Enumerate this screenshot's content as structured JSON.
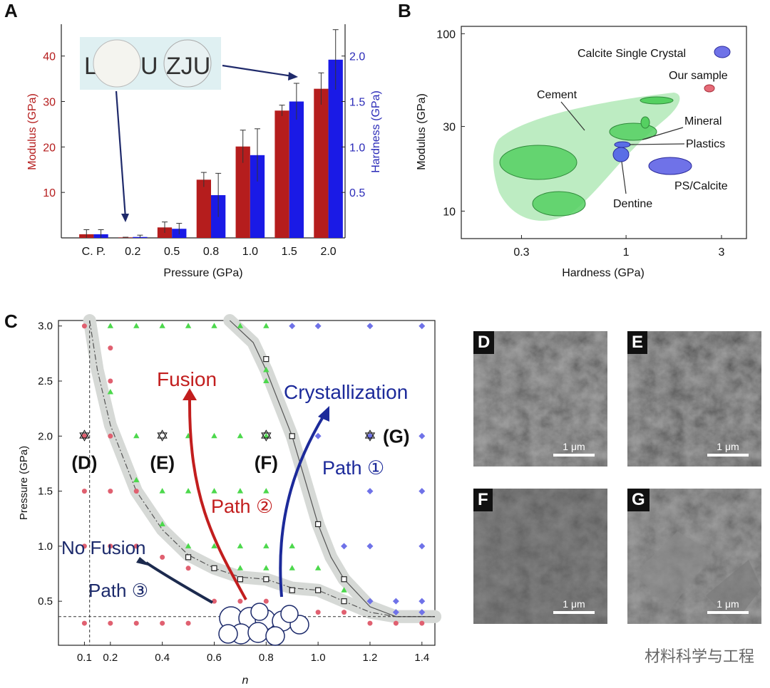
{
  "panels": {
    "A": "A",
    "B": "B",
    "C": "C"
  },
  "panelA": {
    "chart_data": {
      "type": "bar",
      "categories": [
        "C. P.",
        "0.2",
        "0.5",
        "0.8",
        "1.0",
        "1.5",
        "2.0"
      ],
      "series": [
        {
          "name": "Modulus (GPa)",
          "color": "#b51d1d",
          "values": [
            0.8,
            0.1,
            2.3,
            12.8,
            20.1,
            28.0,
            32.8
          ],
          "errors": [
            1.0,
            0.05,
            1.2,
            1.6,
            3.6,
            1.2,
            3.5
          ]
        },
        {
          "name": "Hardness (GPa)",
          "color": "#1a1ae6",
          "values": [
            0.04,
            0.01,
            0.1,
            0.47,
            0.91,
            1.5,
            1.96
          ],
          "errors": [
            0.05,
            0.02,
            0.06,
            0.24,
            0.29,
            0.2,
            0.33
          ]
        }
      ],
      "xlabel": "Pressure (GPa)",
      "ylabel_left": "Modulus (GPa)",
      "ylabel_right": "Hardness (GPa)",
      "ylim_left": [
        0,
        47
      ],
      "ylim_right": [
        0,
        2.35
      ],
      "yticks_left": [
        "10",
        "20",
        "30",
        "40"
      ],
      "yticks_right": [
        "0.5",
        "1.0",
        "1.5",
        "2.0"
      ],
      "photo_letters": [
        "L",
        "U",
        "ZJU"
      ]
    }
  },
  "panelB": {
    "chart_data": {
      "type": "scatter",
      "xscale": "log",
      "yscale": "log",
      "xlim": [
        0.15,
        4.0
      ],
      "ylim": [
        7,
        110
      ],
      "xticks": [
        "0.3",
        "1",
        "3"
      ],
      "yticks": [
        "10",
        "30",
        "100"
      ],
      "xlabel": "Hardness (GPa)",
      "ylabel": "Modulus (GPa)",
      "labels": [
        "Calcite Single Crystal",
        "Our sample",
        "Cement",
        "Mineral",
        "Plastics",
        "Dentine",
        "PS/Calcite"
      ]
    }
  },
  "panelC": {
    "chart_data": {
      "type": "scatter",
      "xlim": [
        0.0,
        1.45
      ],
      "ylim": [
        0.1,
        3.05
      ],
      "xticks": [
        "0.1",
        "0.2",
        "0.4",
        "0.6",
        "0.8",
        "1.0",
        "1.2",
        "1.4"
      ],
      "yticks": [
        "0.5",
        "1.0",
        "1.5",
        "2.0",
        "2.5",
        "3.0"
      ],
      "xlabel": "n",
      "ylabel": "Pressure (GPa)",
      "no_fusion": [
        [
          0.1,
          3.0
        ],
        [
          0.1,
          2.0
        ],
        [
          0.1,
          1.5
        ],
        [
          0.1,
          1.0
        ],
        [
          0.1,
          0.3
        ],
        [
          0.2,
          2.8
        ],
        [
          0.2,
          2.5
        ],
        [
          0.2,
          2.0
        ],
        [
          0.2,
          1.5
        ],
        [
          0.2,
          1.0
        ],
        [
          0.2,
          0.3
        ],
        [
          0.3,
          1.5
        ],
        [
          0.3,
          1.0
        ],
        [
          0.3,
          0.3
        ],
        [
          0.4,
          0.9
        ],
        [
          0.4,
          0.3
        ],
        [
          0.5,
          0.8
        ],
        [
          0.5,
          0.3
        ],
        [
          0.6,
          0.8
        ],
        [
          0.6,
          0.5
        ],
        [
          0.7,
          0.5
        ],
        [
          0.8,
          0.5
        ],
        [
          0.8,
          0.4
        ],
        [
          0.9,
          0.4
        ],
        [
          1.0,
          0.4
        ],
        [
          1.1,
          0.4
        ],
        [
          1.2,
          0.3
        ],
        [
          1.3,
          0.3
        ],
        [
          1.4,
          0.3
        ]
      ],
      "fusion": [
        [
          0.2,
          3.0
        ],
        [
          0.2,
          2.4
        ],
        [
          0.3,
          3.0
        ],
        [
          0.3,
          2.0
        ],
        [
          0.3,
          1.6
        ],
        [
          0.4,
          3.0
        ],
        [
          0.4,
          1.5
        ],
        [
          0.4,
          1.2
        ],
        [
          0.5,
          3.0
        ],
        [
          0.5,
          2.0
        ],
        [
          0.5,
          1.5
        ],
        [
          0.5,
          1.0
        ],
        [
          0.6,
          3.0
        ],
        [
          0.6,
          2.0
        ],
        [
          0.6,
          1.5
        ],
        [
          0.6,
          1.0
        ],
        [
          0.7,
          3.0
        ],
        [
          0.7,
          2.0
        ],
        [
          0.7,
          1.5
        ],
        [
          0.7,
          1.0
        ],
        [
          0.7,
          0.8
        ],
        [
          0.8,
          3.0
        ],
        [
          0.8,
          2.6
        ],
        [
          0.8,
          2.5
        ],
        [
          0.8,
          2.0
        ],
        [
          0.8,
          1.5
        ],
        [
          0.8,
          1.0
        ],
        [
          0.8,
          0.8
        ],
        [
          0.9,
          1.0
        ],
        [
          0.9,
          0.8
        ],
        [
          1.0,
          0.8
        ],
        [
          1.1,
          0.6
        ]
      ],
      "crystallization": [
        [
          0.9,
          3.0
        ],
        [
          1.0,
          3.0
        ],
        [
          1.2,
          3.0
        ],
        [
          1.4,
          3.0
        ],
        [
          1.0,
          2.0
        ],
        [
          1.2,
          2.0
        ],
        [
          1.4,
          2.0
        ],
        [
          1.2,
          1.5
        ],
        [
          1.4,
          1.5
        ],
        [
          1.1,
          1.0
        ],
        [
          1.2,
          1.0
        ],
        [
          1.4,
          1.0
        ],
        [
          1.2,
          0.5
        ],
        [
          1.3,
          0.5
        ],
        [
          1.4,
          0.5
        ],
        [
          1.3,
          0.4
        ],
        [
          1.4,
          0.4
        ]
      ],
      "boundary_lower": [
        [
          0.5,
          0.9
        ],
        [
          0.6,
          0.8
        ],
        [
          0.7,
          0.7
        ],
        [
          0.8,
          0.7
        ],
        [
          0.9,
          0.6
        ],
        [
          1.0,
          0.6
        ],
        [
          1.1,
          0.5
        ]
      ],
      "boundary_upper": [
        [
          0.8,
          2.7
        ],
        [
          0.9,
          2.0
        ],
        [
          1.0,
          1.2
        ],
        [
          1.1,
          0.7
        ]
      ],
      "stars": [
        {
          "x": 0.1,
          "y": 2.0,
          "label": "(D)"
        },
        {
          "x": 0.4,
          "y": 2.0,
          "label": "(E)"
        },
        {
          "x": 0.8,
          "y": 2.0,
          "label": "(F)"
        },
        {
          "x": 1.2,
          "y": 2.0,
          "label": "(G)"
        }
      ],
      "region_labels": {
        "fusion": "Fusion",
        "crystallization": "Crystallization",
        "no_fusion": "No Fusion",
        "path1": "Path ①",
        "path2": "Path ②",
        "path3": "Path ③"
      },
      "colors": {
        "no_fusion": "#e06070",
        "fusion": "#4cd84c",
        "crystallization": "#6f72e8"
      }
    }
  },
  "images": [
    {
      "label": "D",
      "scale": "1 μm"
    },
    {
      "label": "E",
      "scale": "1 μm"
    },
    {
      "label": "F",
      "scale": "1 μm"
    },
    {
      "label": "G",
      "scale": "1 μm"
    }
  ],
  "watermark": "材料科学与工程"
}
